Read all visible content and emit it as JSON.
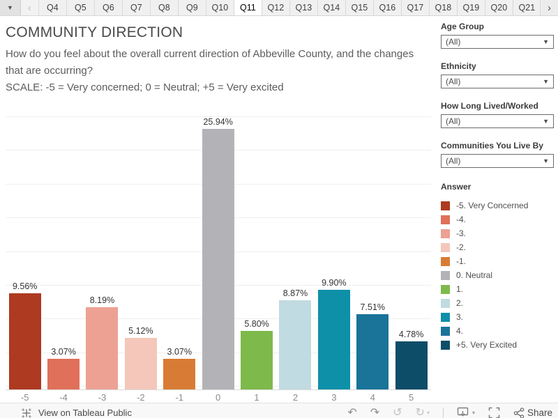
{
  "tab_bar": {
    "scroll_left": "‹",
    "scroll_right": "›",
    "dropdown_caret": "▼",
    "tabs": [
      "Q4",
      "Q5",
      "Q6",
      "Q7",
      "Q8",
      "Q9",
      "Q10",
      "Q11",
      "Q12",
      "Q13",
      "Q14",
      "Q15",
      "Q16",
      "Q17",
      "Q18",
      "Q19",
      "Q20",
      "Q21"
    ],
    "active_tab": "Q11"
  },
  "header": {
    "title": "COMMUNITY DIRECTION",
    "question": "How do you feel about the overall current direction of Abbeville County, and the changes that are occurring?",
    "scale_note": "SCALE: -5 = Very concerned; 0 = Neutral; +5 = Very excited"
  },
  "filters": [
    {
      "label": "Age Group",
      "value": "(All)"
    },
    {
      "label": "Ethnicity",
      "value": "(All)"
    },
    {
      "label": "How Long Lived/Worked",
      "value": "(All)"
    },
    {
      "label": "Communities You Live By",
      "value": "(All)"
    }
  ],
  "legend": {
    "title": "Answer",
    "items": [
      {
        "label": "-5. Very Concerned",
        "color": "#ae3a21"
      },
      {
        "label": "-4.",
        "color": "#e0705a"
      },
      {
        "label": "-3.",
        "color": "#eca193"
      },
      {
        "label": "-2.",
        "color": "#f4c7ba"
      },
      {
        "label": "-1.",
        "color": "#d87c35"
      },
      {
        "label": "0. Neutral",
        "color": "#b3b3b7"
      },
      {
        "label": "1.",
        "color": "#7eb94c"
      },
      {
        "label": "2.",
        "color": "#c0dbe1"
      },
      {
        "label": "3.",
        "color": "#0e90a8"
      },
      {
        "label": "4.",
        "color": "#1a7399"
      },
      {
        "label": "+5. Very Excited",
        "color": "#0e4d68"
      }
    ]
  },
  "chart_data": {
    "type": "bar",
    "title": "COMMUNITY DIRECTION",
    "categories": [
      "-5",
      "-4",
      "-3",
      "-2",
      "-1",
      "0",
      "1",
      "2",
      "3",
      "4",
      "5"
    ],
    "values": [
      9.56,
      3.07,
      8.19,
      5.12,
      3.07,
      25.94,
      5.8,
      8.87,
      9.9,
      7.51,
      4.78
    ],
    "value_labels": [
      "9.56%",
      "3.07%",
      "8.19%",
      "5.12%",
      "3.07%",
      "25.94%",
      "5.80%",
      "8.87%",
      "9.90%",
      "7.51%",
      "4.78%"
    ],
    "colors": [
      "#ae3a21",
      "#e0705a",
      "#eca193",
      "#f4c7ba",
      "#d87c35",
      "#b3b3b7",
      "#7eb94c",
      "#c0dbe1",
      "#0e90a8",
      "#1a7399",
      "#0e4d68"
    ],
    "xlabel": "",
    "ylabel": "",
    "ylim": [
      0,
      28.3
    ],
    "grid": true,
    "legend_position": "right",
    "legend_title": "Answer"
  },
  "footer": {
    "view_label": "View on Tableau Public",
    "share_label": "Share",
    "icons": [
      "tableau-logo",
      "undo",
      "redo",
      "revert",
      "refresh",
      "download",
      "fullscreen",
      "share"
    ],
    "undo_glyph": "↶",
    "redo_glyph": "↷",
    "revert_glyph": "↺",
    "refresh_glyph": "↻",
    "caret_glyph": "▾"
  }
}
